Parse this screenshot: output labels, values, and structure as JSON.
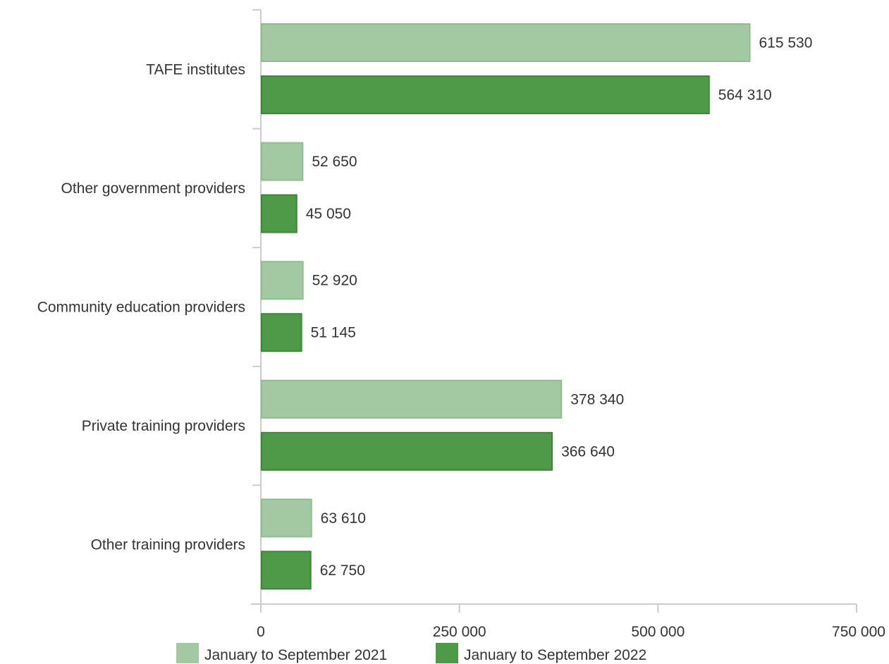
{
  "chart_data": {
    "type": "bar",
    "orientation": "horizontal",
    "categories": [
      "TAFE institutes",
      "Other government providers",
      "Community education providers",
      "Private training providers",
      "Other training providers"
    ],
    "series": [
      {
        "name": "January to September 2021",
        "color": "#a3c9a2",
        "stroke": "#8fbd8e",
        "values": [
          615530,
          52650,
          52920,
          378340,
          63610
        ],
        "labels": [
          "615 530",
          "52 650",
          "52 920",
          "378 340",
          "63 610"
        ]
      },
      {
        "name": "January to September 2022",
        "color": "#4e9a48",
        "stroke": "#3b8736",
        "values": [
          564310,
          45050,
          51145,
          366640,
          62750
        ],
        "labels": [
          "564 310",
          "45 050",
          "51 145",
          "366 640",
          "62 750"
        ]
      }
    ],
    "xlim": [
      0,
      750000
    ],
    "xticks": [
      0,
      250000,
      500000,
      750000
    ],
    "xtick_labels": [
      "0",
      "250 000",
      "500 000",
      "750 000"
    ],
    "grid": false,
    "legend_position": "bottom"
  }
}
